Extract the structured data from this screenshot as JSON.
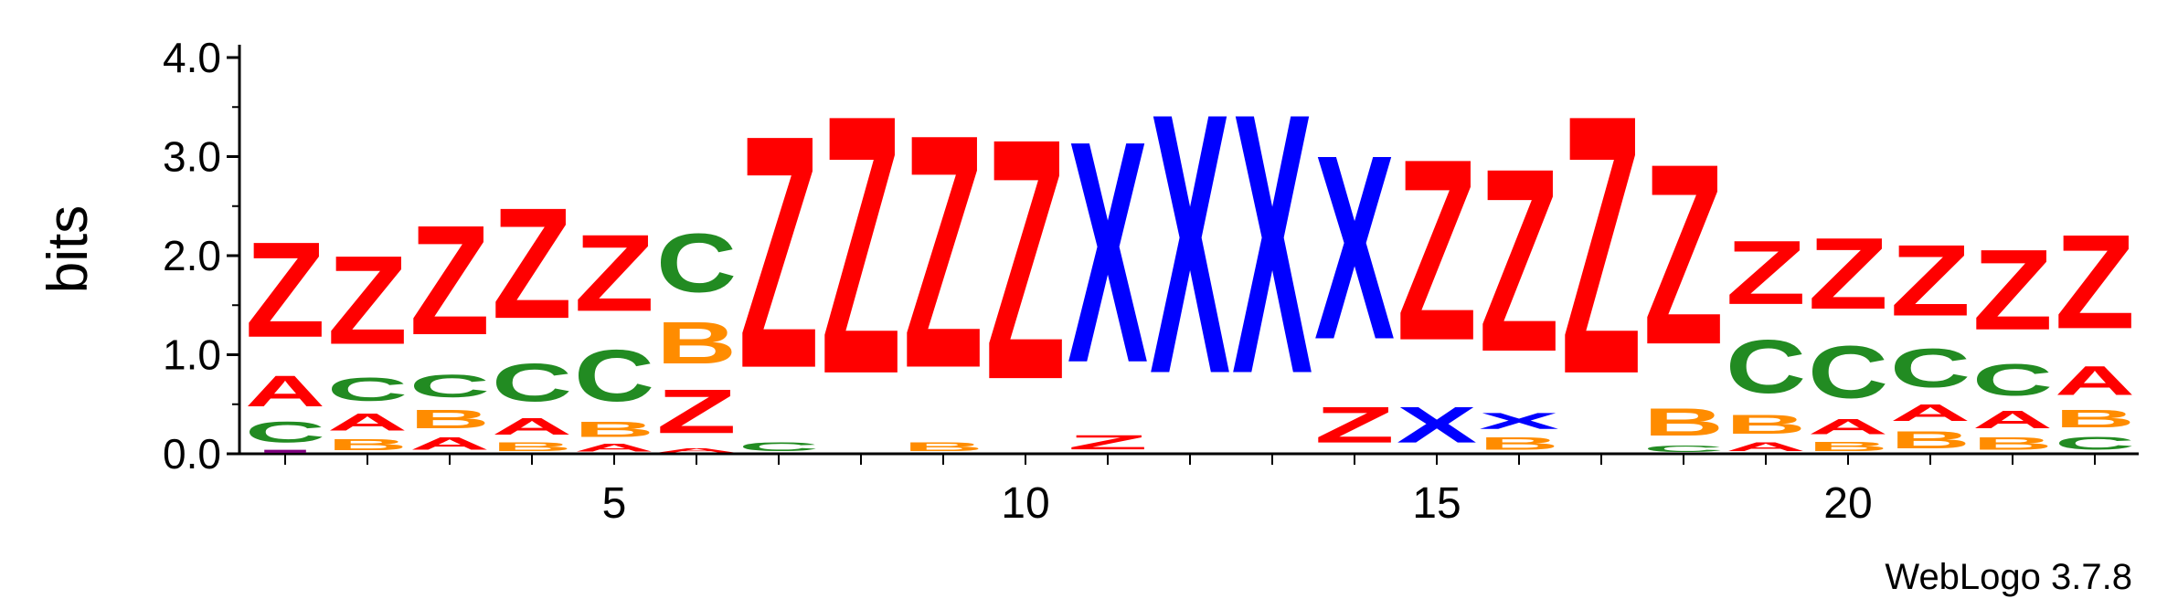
{
  "colors": {
    "Z": "#ff0000",
    "X": "#0000ff",
    "C": "#228b22",
    "B": "#ff8c00",
    "A": "#ff0000",
    "I": "#800080"
  },
  "chart_data": {
    "type": "sequence-logo",
    "ylabel": "bits",
    "ylim": [
      0,
      4.0
    ],
    "yticks": [
      "0.0",
      "1.0",
      "2.0",
      "3.0",
      "4.0"
    ],
    "xticks": [
      "5",
      "10",
      "15",
      "20"
    ],
    "credit": "WebLogo 3.7.8",
    "positions": [
      {
        "pos": 1,
        "stack": [
          {
            "l": "I",
            "h": 0.05
          },
          {
            "l": "C",
            "h": 0.33
          },
          {
            "l": "A",
            "h": 0.5
          },
          {
            "l": "Z",
            "h": 1.54
          }
        ]
      },
      {
        "pos": 2,
        "stack": [
          {
            "l": "B",
            "h": 0.18
          },
          {
            "l": "A",
            "h": 0.28
          },
          {
            "l": "C",
            "h": 0.37
          },
          {
            "l": "Z",
            "h": 1.43
          }
        ]
      },
      {
        "pos": 3,
        "stack": [
          {
            "l": "A",
            "h": 0.2
          },
          {
            "l": "B",
            "h": 0.3
          },
          {
            "l": "C",
            "h": 0.36
          },
          {
            "l": "Z",
            "h": 1.77
          }
        ]
      },
      {
        "pos": 4,
        "stack": [
          {
            "l": "B",
            "h": 0.14
          },
          {
            "l": "A",
            "h": 0.27
          },
          {
            "l": "C",
            "h": 0.61
          },
          {
            "l": "Z",
            "h": 1.79
          }
        ]
      },
      {
        "pos": 5,
        "stack": [
          {
            "l": "A",
            "h": 0.12
          },
          {
            "l": "B",
            "h": 0.25
          },
          {
            "l": "C",
            "h": 0.83
          },
          {
            "l": "Z",
            "h": 1.24
          }
        ]
      },
      {
        "pos": 6,
        "stack": [
          {
            "l": "A",
            "h": 0.07
          },
          {
            "l": "Z",
            "h": 0.71
          },
          {
            "l": "B",
            "h": 0.67
          },
          {
            "l": "C",
            "h": 0.95
          }
        ]
      },
      {
        "pos": 7,
        "stack": [
          {
            "l": "C",
            "h": 0.14
          },
          {
            "l": "Z",
            "h": 3.76
          }
        ]
      },
      {
        "pos": 8,
        "stack": [
          {
            "l": "Z",
            "h": 4.18
          }
        ]
      },
      {
        "pos": 9,
        "stack": [
          {
            "l": "B",
            "h": 0.14
          },
          {
            "l": "Z",
            "h": 3.77
          }
        ]
      },
      {
        "pos": 10,
        "stack": [
          {
            "l": "Z",
            "h": 3.89
          }
        ]
      },
      {
        "pos": 11,
        "stack": [
          {
            "l": "Z",
            "h": 0.23
          },
          {
            "l": "X",
            "h": 3.58
          }
        ]
      },
      {
        "pos": 12,
        "stack": [
          {
            "l": "X",
            "h": 4.2
          }
        ]
      },
      {
        "pos": 13,
        "stack": [
          {
            "l": "X",
            "h": 4.2
          }
        ]
      },
      {
        "pos": 14,
        "stack": [
          {
            "l": "Z",
            "h": 0.58
          },
          {
            "l": "X",
            "h": 2.98
          }
        ]
      },
      {
        "pos": 15,
        "stack": [
          {
            "l": "X",
            "h": 0.58
          },
          {
            "l": "Z",
            "h": 2.93
          }
        ]
      },
      {
        "pos": 16,
        "stack": [
          {
            "l": "B",
            "h": 0.2
          },
          {
            "l": "X",
            "h": 0.26
          },
          {
            "l": "Z",
            "h": 2.96
          }
        ]
      },
      {
        "pos": 17,
        "stack": [
          {
            "l": "Z",
            "h": 4.18
          }
        ]
      },
      {
        "pos": 18,
        "stack": [
          {
            "l": "C",
            "h": 0.1
          },
          {
            "l": "B",
            "h": 0.44
          },
          {
            "l": "Z",
            "h": 2.92
          }
        ]
      },
      {
        "pos": 19,
        "stack": [
          {
            "l": "A",
            "h": 0.14
          },
          {
            "l": "B",
            "h": 0.31
          },
          {
            "l": "C",
            "h": 0.86
          },
          {
            "l": "Z",
            "h": 1.03
          }
        ]
      },
      {
        "pos": 20,
        "stack": [
          {
            "l": "B",
            "h": 0.15
          },
          {
            "l": "A",
            "h": 0.25
          },
          {
            "l": "C",
            "h": 0.84
          },
          {
            "l": "Z",
            "h": 1.15
          }
        ]
      },
      {
        "pos": 21,
        "stack": [
          {
            "l": "B",
            "h": 0.28
          },
          {
            "l": "A",
            "h": 0.27
          },
          {
            "l": "C",
            "h": 0.62
          },
          {
            "l": "Z",
            "h": 1.15
          }
        ]
      },
      {
        "pos": 22,
        "stack": [
          {
            "l": "B",
            "h": 0.2
          },
          {
            "l": "A",
            "h": 0.29
          },
          {
            "l": "C",
            "h": 0.51
          },
          {
            "l": "Z",
            "h": 1.3
          }
        ]
      },
      {
        "pos": 23,
        "stack": [
          {
            "l": "C",
            "h": 0.21
          },
          {
            "l": "B",
            "h": 0.29
          },
          {
            "l": "A",
            "h": 0.47
          },
          {
            "l": "Z",
            "h": 1.52
          }
        ]
      }
    ]
  }
}
